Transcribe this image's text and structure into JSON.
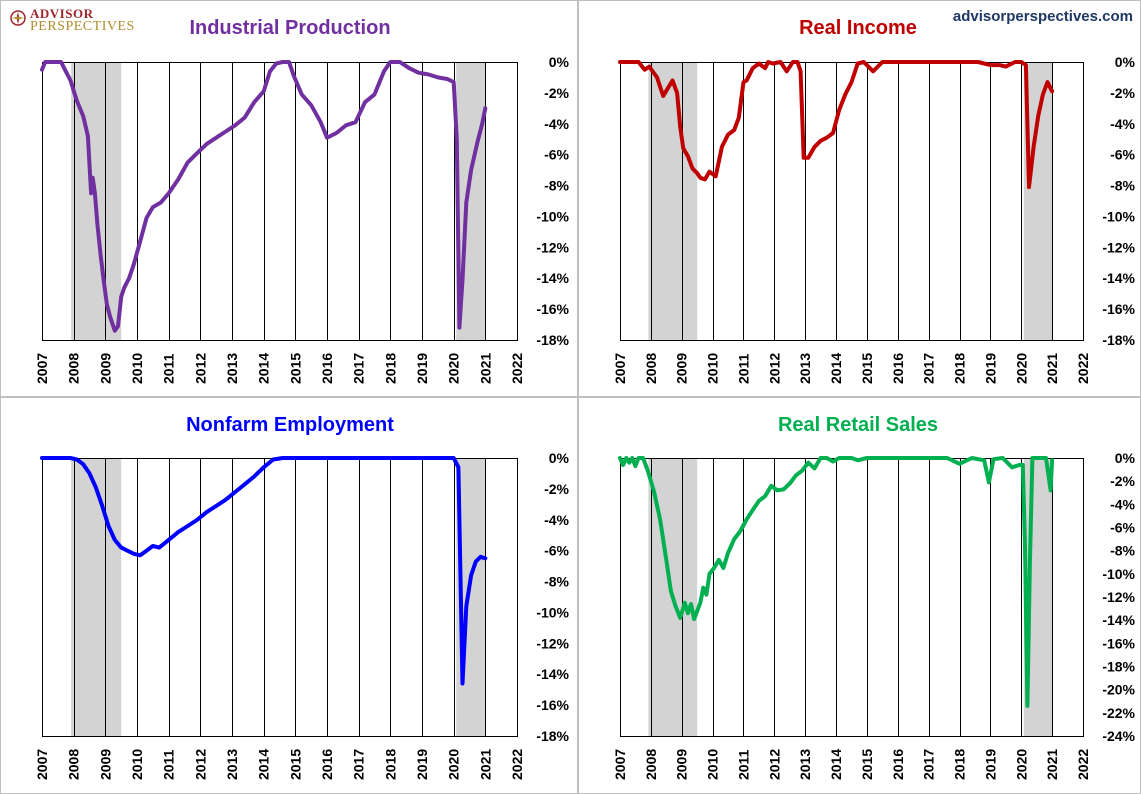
{
  "branding": {
    "logo_line1": "ADVISOR",
    "logo_line2": "PERSPECTIVES",
    "website": "advisorperspectives.com"
  },
  "chart_data": [
    {
      "type": "line",
      "title": "Industrial Production",
      "color": "#7030a0",
      "x_ticks": [
        "2007",
        "2008",
        "2009",
        "2010",
        "2011",
        "2012",
        "2013",
        "2014",
        "2015",
        "2016",
        "2017",
        "2018",
        "2019",
        "2020",
        "2021",
        "2022"
      ],
      "xlim": [
        2007,
        2022
      ],
      "y_ticks": [
        "0%",
        "-2%",
        "-4%",
        "-6%",
        "-8%",
        "-10%",
        "-12%",
        "-14%",
        "-16%",
        "-18%"
      ],
      "ylim": [
        -18,
        0
      ],
      "recessions": [
        [
          2007.92,
          2009.5
        ],
        [
          2020.08,
          2021.0
        ]
      ],
      "series": [
        {
          "name": "Industrial Production",
          "x": [
            2007.0,
            2007.1,
            2007.2,
            2007.4,
            2007.6,
            2007.75,
            2007.9,
            2008.1,
            2008.3,
            2008.45,
            2008.55,
            2008.6,
            2008.67,
            2008.75,
            2008.85,
            2008.95,
            2009.05,
            2009.15,
            2009.3,
            2009.4,
            2009.5,
            2009.6,
            2009.75,
            2009.9,
            2010.1,
            2010.3,
            2010.5,
            2010.75,
            2011.0,
            2011.3,
            2011.6,
            2011.9,
            2012.2,
            2012.5,
            2012.8,
            2013.1,
            2013.4,
            2013.7,
            2014.0,
            2014.2,
            2014.4,
            2014.6,
            2014.8,
            2014.95,
            2015.2,
            2015.5,
            2015.8,
            2016.0,
            2016.3,
            2016.6,
            2016.9,
            2017.2,
            2017.5,
            2017.8,
            2018.0,
            2018.3,
            2018.6,
            2018.9,
            2019.2,
            2019.5,
            2019.8,
            2020.0,
            2020.1,
            2020.18,
            2020.28,
            2020.4,
            2020.55,
            2020.75,
            2020.9,
            2021.0
          ],
          "values": [
            -0.5,
            0,
            0,
            0,
            0,
            -0.6,
            -1.2,
            -2.5,
            -3.5,
            -4.8,
            -8.5,
            -7.5,
            -8.5,
            -10.5,
            -12.5,
            -14.2,
            -15.7,
            -16.5,
            -17.4,
            -17.1,
            -15.2,
            -14.6,
            -14.0,
            -13.1,
            -11.6,
            -10.1,
            -9.4,
            -9.1,
            -8.5,
            -7.6,
            -6.5,
            -5.9,
            -5.3,
            -4.9,
            -4.5,
            -4.1,
            -3.6,
            -2.6,
            -1.9,
            -0.6,
            -0.1,
            0,
            0,
            -0.9,
            -2.1,
            -2.8,
            -3.9,
            -4.9,
            -4.6,
            -4.1,
            -3.9,
            -2.6,
            -2.1,
            -0.6,
            0,
            0,
            -0.4,
            -0.7,
            -0.8,
            -1.0,
            -1.1,
            -1.3,
            -5.0,
            -17.2,
            -14.1,
            -9.1,
            -7.0,
            -5.2,
            -4.0,
            -3.0
          ]
        }
      ]
    },
    {
      "type": "line",
      "title": "Real Income",
      "color": "#c00000",
      "x_ticks": [
        "2007",
        "2008",
        "2009",
        "2010",
        "2011",
        "2012",
        "2013",
        "2014",
        "2015",
        "2016",
        "2017",
        "2018",
        "2019",
        "2020",
        "2021",
        "2022"
      ],
      "xlim": [
        2007,
        2022
      ],
      "y_ticks": [
        "0%",
        "-2%",
        "-4%",
        "-6%",
        "-8%",
        "-10%",
        "-12%",
        "-14%",
        "-16%",
        "-18%"
      ],
      "ylim": [
        -18,
        0
      ],
      "recessions": [
        [
          2007.92,
          2009.5
        ],
        [
          2020.08,
          2021.0
        ]
      ],
      "series": [
        {
          "name": "Real Income",
          "x": [
            2007.0,
            2007.3,
            2007.6,
            2007.8,
            2007.95,
            2008.2,
            2008.4,
            2008.55,
            2008.7,
            2008.85,
            2008.95,
            2009.05,
            2009.2,
            2009.35,
            2009.5,
            2009.6,
            2009.75,
            2009.9,
            2010.1,
            2010.3,
            2010.5,
            2010.7,
            2010.85,
            2011.0,
            2011.1,
            2011.3,
            2011.5,
            2011.7,
            2011.8,
            2011.95,
            2012.2,
            2012.4,
            2012.6,
            2012.75,
            2012.85,
            2012.95,
            2013.1,
            2013.3,
            2013.5,
            2013.7,
            2013.9,
            2014.1,
            2014.3,
            2014.5,
            2014.7,
            2014.9,
            2015.2,
            2015.5,
            2015.8,
            2016.2,
            2016.6,
            2017.0,
            2017.4,
            2017.8,
            2018.2,
            2018.6,
            2019.0,
            2019.3,
            2019.5,
            2019.8,
            2020.0,
            2020.15,
            2020.25,
            2020.4,
            2020.55,
            2020.7,
            2020.85,
            2021.0
          ],
          "values": [
            0,
            0,
            0,
            -0.5,
            -0.3,
            -1.0,
            -2.2,
            -1.7,
            -1.2,
            -2.0,
            -4.2,
            -5.6,
            -6.1,
            -6.9,
            -7.2,
            -7.5,
            -7.6,
            -7.1,
            -7.4,
            -5.5,
            -4.7,
            -4.4,
            -3.6,
            -1.3,
            -1.2,
            -0.4,
            -0.1,
            -0.4,
            0,
            -0.1,
            0,
            -0.6,
            0,
            0,
            -0.6,
            -6.2,
            -6.2,
            -5.5,
            -5.1,
            -4.9,
            -4.6,
            -3.1,
            -2.1,
            -1.3,
            -0.1,
            0,
            -0.6,
            0,
            0,
            0,
            0,
            0,
            0,
            0,
            0,
            0,
            -0.2,
            -0.2,
            -0.3,
            0,
            0,
            -0.2,
            -8.1,
            -5.5,
            -3.5,
            -2.1,
            -1.3,
            -1.9
          ]
        }
      ]
    },
    {
      "type": "line",
      "title": "Nonfarm Employment",
      "color": "#0000ff",
      "x_ticks": [
        "2007",
        "2008",
        "2009",
        "2010",
        "2011",
        "2012",
        "2013",
        "2014",
        "2015",
        "2016",
        "2017",
        "2018",
        "2019",
        "2020",
        "2021",
        "2022"
      ],
      "xlim": [
        2007,
        2022
      ],
      "y_ticks": [
        "0%",
        "-2%",
        "-4%",
        "-6%",
        "-8%",
        "-10%",
        "-12%",
        "-14%",
        "-16%",
        "-18%"
      ],
      "ylim": [
        -18,
        0
      ],
      "recessions": [
        [
          2007.92,
          2009.5
        ],
        [
          2020.08,
          2021.0
        ]
      ],
      "series": [
        {
          "name": "Nonfarm Employment",
          "x": [
            2007.0,
            2007.5,
            2007.9,
            2008.1,
            2008.3,
            2008.5,
            2008.7,
            2008.9,
            2009.1,
            2009.3,
            2009.5,
            2009.7,
            2009.9,
            2010.1,
            2010.3,
            2010.5,
            2010.7,
            2011.0,
            2011.3,
            2011.6,
            2011.9,
            2012.2,
            2012.5,
            2012.8,
            2013.1,
            2013.4,
            2013.7,
            2014.0,
            2014.3,
            2014.6,
            2015.0,
            2016.0,
            2017.0,
            2018.0,
            2019.0,
            2019.5,
            2020.0,
            2020.15,
            2020.28,
            2020.4,
            2020.55,
            2020.7,
            2020.85,
            2021.0
          ],
          "values": [
            0,
            0,
            0,
            -0.1,
            -0.4,
            -1.0,
            -1.9,
            -3.1,
            -4.4,
            -5.3,
            -5.8,
            -6.0,
            -6.2,
            -6.3,
            -6.0,
            -5.7,
            -5.8,
            -5.3,
            -4.8,
            -4.4,
            -4.0,
            -3.5,
            -3.1,
            -2.7,
            -2.2,
            -1.7,
            -1.2,
            -0.6,
            -0.1,
            0,
            0,
            0,
            0,
            0,
            0,
            0,
            0,
            -0.6,
            -14.6,
            -9.6,
            -7.6,
            -6.7,
            -6.4,
            -6.5
          ]
        }
      ]
    },
    {
      "type": "line",
      "title": "Real Retail Sales",
      "color": "#00b050",
      "x_ticks": [
        "2007",
        "2008",
        "2009",
        "2010",
        "2011",
        "2012",
        "2013",
        "2014",
        "2015",
        "2016",
        "2017",
        "2018",
        "2019",
        "2020",
        "2021",
        "2022"
      ],
      "xlim": [
        2007,
        2022
      ],
      "y_ticks": [
        "0%",
        "-2%",
        "-4%",
        "-6%",
        "-8%",
        "-10%",
        "-12%",
        "-14%",
        "-16%",
        "-18%",
        "-20%",
        "-22%",
        "-24%"
      ],
      "ylim": [
        -24,
        0
      ],
      "recessions": [
        [
          2007.92,
          2009.5
        ],
        [
          2020.08,
          2021.0
        ]
      ],
      "series": [
        {
          "name": "Real Retail Sales",
          "x": [
            2007.0,
            2007.1,
            2007.2,
            2007.3,
            2007.4,
            2007.5,
            2007.6,
            2007.75,
            2007.9,
            2008.1,
            2008.3,
            2008.5,
            2008.65,
            2008.8,
            2008.95,
            2009.1,
            2009.2,
            2009.3,
            2009.4,
            2009.5,
            2009.6,
            2009.7,
            2009.8,
            2009.9,
            2010.05,
            2010.2,
            2010.35,
            2010.5,
            2010.7,
            2010.9,
            2011.1,
            2011.3,
            2011.5,
            2011.7,
            2011.9,
            2012.1,
            2012.3,
            2012.5,
            2012.7,
            2012.9,
            2013.1,
            2013.3,
            2013.5,
            2013.7,
            2013.9,
            2014.1,
            2014.3,
            2014.5,
            2014.7,
            2015.0,
            2015.3,
            2015.6,
            2016.0,
            2016.4,
            2016.8,
            2017.2,
            2017.6,
            2018.0,
            2018.4,
            2018.8,
            2018.95,
            2019.1,
            2019.4,
            2019.7,
            2019.95,
            2020.05,
            2020.12,
            2020.2,
            2020.28,
            2020.36,
            2020.45,
            2020.6,
            2020.8,
            2020.95,
            2021.0
          ],
          "values": [
            0,
            -0.6,
            0,
            -0.4,
            0,
            -0.7,
            0,
            0,
            -1.1,
            -2.9,
            -5.3,
            -8.8,
            -11.5,
            -12.8,
            -13.8,
            -12.5,
            -13.4,
            -12.6,
            -13.9,
            -13.2,
            -12.5,
            -11.2,
            -11.8,
            -10.0,
            -9.5,
            -8.8,
            -9.5,
            -8.2,
            -7.0,
            -6.3,
            -5.3,
            -4.5,
            -3.7,
            -3.3,
            -2.4,
            -2.8,
            -2.7,
            -2.2,
            -1.5,
            -1.1,
            -0.4,
            -0.9,
            0,
            0,
            -0.3,
            0,
            0,
            0,
            -0.2,
            0,
            0,
            0,
            0,
            0,
            0,
            0,
            0,
            -0.5,
            0,
            -0.2,
            -2.1,
            -0.1,
            0,
            -0.8,
            -0.6,
            -0.6,
            -7.5,
            -21.4,
            -9.0,
            0,
            0,
            0,
            0,
            -2.8,
            -0.2
          ]
        }
      ]
    }
  ]
}
